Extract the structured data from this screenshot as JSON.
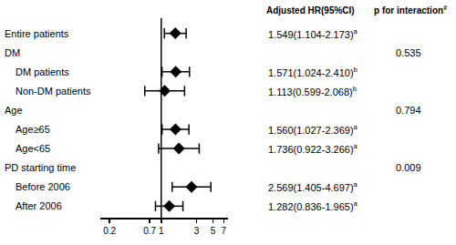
{
  "chart_data": {
    "type": "forest",
    "columns": {
      "hr": "Adjusted HR(95%CI)",
      "p": "p for interaction",
      "p_mark": "#"
    },
    "xlim": [
      0.15,
      8
    ],
    "xticks": [
      0.2,
      0.7,
      1,
      3,
      5,
      7
    ],
    "log": "x",
    "reference_line": 1,
    "tick_labels": "x",
    "color": "#000000",
    "marker": "diamond",
    "rows": [
      {
        "label": "Entire patients",
        "hr": 1.549,
        "ci": [
          1.104,
          2.173
        ],
        "hr_label": "1.549(1.104-2.173)",
        "mark": "a"
      }
    ],
    "groups": [
      {
        "label": "DM",
        "p_interaction": 0.535,
        "rows": [
          {
            "label": "DM patients",
            "hr": 1.571,
            "ci": [
              1.024,
              2.41
            ],
            "hr_label": "1.571(1.024-2.410)",
            "mark": "b"
          },
          {
            "label": "Non-DM patients",
            "hr": 1.113,
            "ci": [
              0.599,
              2.068
            ],
            "hr_label": "1.113(0.599-2.068)",
            "mark": "b"
          }
        ]
      },
      {
        "label": "Age",
        "p_interaction": 0.794,
        "rows": [
          {
            "label": "Age≥65",
            "hr": 1.56,
            "ci": [
              1.027,
              2.369
            ],
            "hr_label": "1.560(1.027-2.369)",
            "mark": "a"
          },
          {
            "label": "Age<65",
            "hr": 1.736,
            "ci": [
              0.922,
              3.266
            ],
            "hr_label": "1.736(0.922-3.266)",
            "mark": "a"
          }
        ]
      },
      {
        "label": "PD starting time",
        "p_interaction": 0.009,
        "rows": [
          {
            "label": "Before 2006",
            "hr": 2.569,
            "ci": [
              1.405,
              4.697
            ],
            "hr_label": "2.569(1.405-4.697)",
            "mark": "a"
          },
          {
            "label": "After 2006",
            "hr": 1.282,
            "ci": [
              0.836,
              1.965
            ],
            "hr_label": "1.282(0.836-1.965)",
            "mark": "a"
          }
        ]
      }
    ]
  }
}
